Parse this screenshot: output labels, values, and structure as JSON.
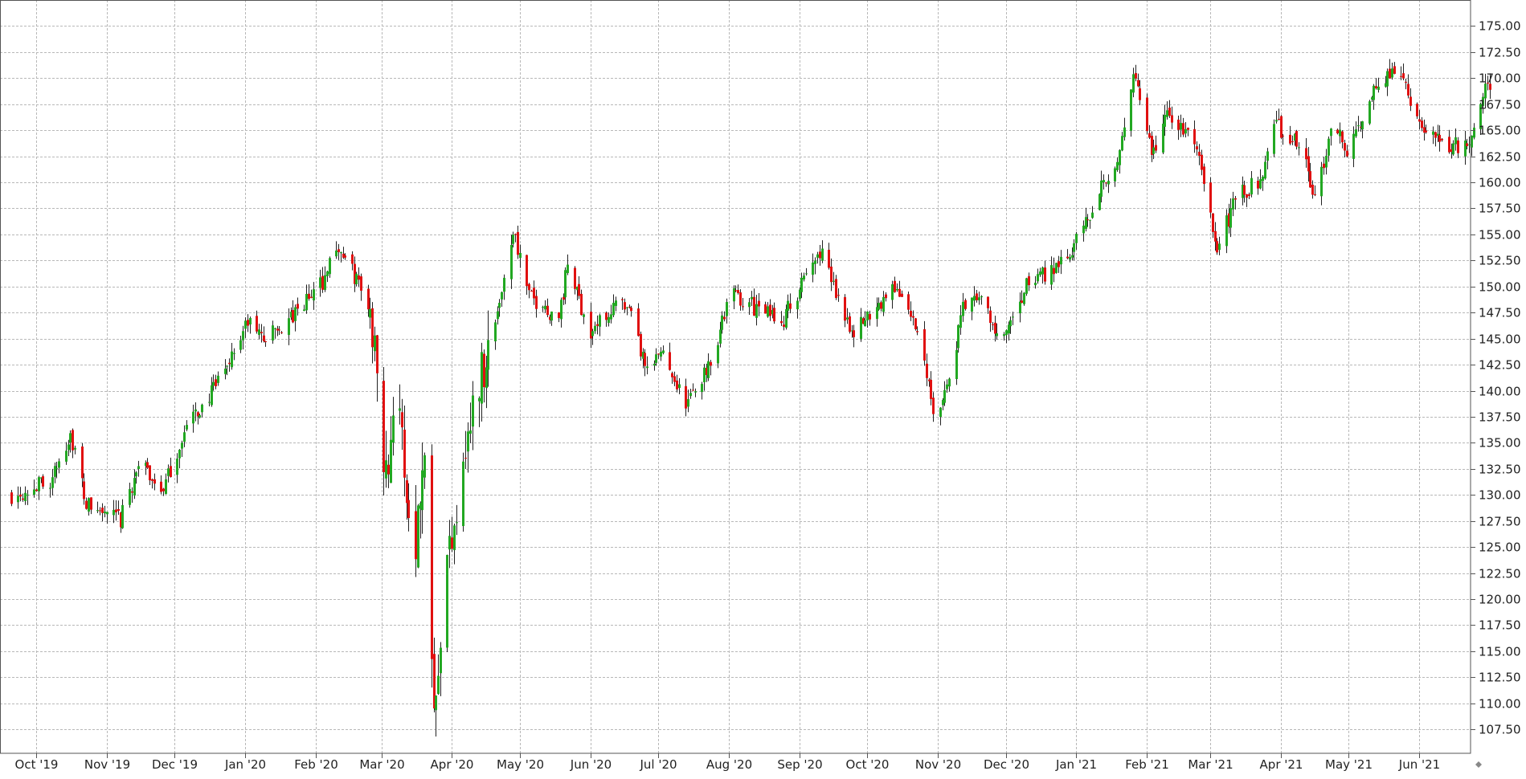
{
  "chart_data": {
    "type": "candlestick",
    "x_tick_labels": [
      "Oct '19",
      "Nov '19",
      "Dec '19",
      "Jan '20",
      "Feb '20",
      "Mar '20",
      "Apr '20",
      "May '20",
      "Jun '20",
      "Jul '20",
      "Aug '20",
      "Sep '20",
      "Oct '20",
      "Nov '20",
      "Dec '20",
      "Jan '21",
      "Feb '21",
      "Mar '21",
      "Apr '21",
      "May '21",
      "Jun '21"
    ],
    "y_tick_labels": [
      "175.00",
      "172.50",
      "170.00",
      "167.50",
      "165.00",
      "162.50",
      "160.00",
      "157.50",
      "155.00",
      "152.50",
      "150.00",
      "147.50",
      "145.00",
      "142.50",
      "140.00",
      "137.50",
      "135.00",
      "132.50",
      "130.00",
      "127.50",
      "125.00",
      "122.50",
      "120.00",
      "117.50",
      "115.00",
      "112.50",
      "110.00",
      "107.50"
    ],
    "ylim": [
      105.2,
      177.5
    ],
    "y_axis_position": "right",
    "grid": true,
    "colors": {
      "up": "#22a822",
      "down": "#e01010",
      "wick": "#222222",
      "grid": "#b8b8b8",
      "axis": "#555555"
    },
    "anchors": [
      {
        "date": "2019-09-20",
        "price": 130.0
      },
      {
        "date": "2019-10-08",
        "price": 131.5
      },
      {
        "date": "2019-10-16",
        "price": 136.0
      },
      {
        "date": "2019-10-23",
        "price": 129.0
      },
      {
        "date": "2019-11-07",
        "price": 127.5
      },
      {
        "date": "2019-11-15",
        "price": 133.0
      },
      {
        "date": "2019-11-26",
        "price": 130.5
      },
      {
        "date": "2019-12-06",
        "price": 136.5
      },
      {
        "date": "2019-12-18",
        "price": 140.0
      },
      {
        "date": "2020-01-02",
        "price": 146.5
      },
      {
        "date": "2020-01-10",
        "price": 145.0
      },
      {
        "date": "2020-01-22",
        "price": 147.0
      },
      {
        "date": "2020-02-04",
        "price": 150.5
      },
      {
        "date": "2020-02-10",
        "price": 154.0
      },
      {
        "date": "2020-02-22",
        "price": 149.5
      },
      {
        "date": "2020-02-28",
        "price": 144.0
      },
      {
        "date": "2020-03-03",
        "price": 131.5
      },
      {
        "date": "2020-03-07",
        "price": 141.0
      },
      {
        "date": "2020-03-15",
        "price": 124.0
      },
      {
        "date": "2020-03-20",
        "price": 134.0
      },
      {
        "date": "2020-03-24",
        "price": 111.0
      },
      {
        "date": "2020-03-31",
        "price": 125.0
      },
      {
        "date": "2020-04-06",
        "price": 134.0
      },
      {
        "date": "2020-04-14",
        "price": 142.0
      },
      {
        "date": "2020-04-20",
        "price": 146.5
      },
      {
        "date": "2020-04-28",
        "price": 155.5
      },
      {
        "date": "2020-05-05",
        "price": 149.0
      },
      {
        "date": "2020-05-18",
        "price": 147.0
      },
      {
        "date": "2020-05-22",
        "price": 152.0
      },
      {
        "date": "2020-06-01",
        "price": 145.5
      },
      {
        "date": "2020-06-12",
        "price": 148.5
      },
      {
        "date": "2020-06-19",
        "price": 147.0
      },
      {
        "date": "2020-06-26",
        "price": 141.5
      },
      {
        "date": "2020-07-03",
        "price": 144.0
      },
      {
        "date": "2020-07-13",
        "price": 138.5
      },
      {
        "date": "2020-07-24",
        "price": 143.0
      },
      {
        "date": "2020-08-02",
        "price": 149.5
      },
      {
        "date": "2020-08-16",
        "price": 147.5
      },
      {
        "date": "2020-08-25",
        "price": 147.0
      },
      {
        "date": "2020-09-03",
        "price": 150.5
      },
      {
        "date": "2020-09-10",
        "price": 153.5
      },
      {
        "date": "2020-09-18",
        "price": 149.0
      },
      {
        "date": "2020-09-25",
        "price": 145.5
      },
      {
        "date": "2020-10-04",
        "price": 148.0
      },
      {
        "date": "2020-10-14",
        "price": 150.0
      },
      {
        "date": "2020-10-24",
        "price": 145.0
      },
      {
        "date": "2020-10-31",
        "price": 137.5
      },
      {
        "date": "2020-11-06",
        "price": 141.0
      },
      {
        "date": "2020-11-12",
        "price": 148.0
      },
      {
        "date": "2020-11-20",
        "price": 149.0
      },
      {
        "date": "2020-11-27",
        "price": 145.0
      },
      {
        "date": "2020-12-03",
        "price": 146.0
      },
      {
        "date": "2020-12-11",
        "price": 150.5
      },
      {
        "date": "2020-12-20",
        "price": 151.5
      },
      {
        "date": "2021-01-02",
        "price": 154.5
      },
      {
        "date": "2021-01-11",
        "price": 159.5
      },
      {
        "date": "2021-01-20",
        "price": 162.5
      },
      {
        "date": "2021-01-26",
        "price": 170.5
      },
      {
        "date": "2021-02-03",
        "price": 162.5
      },
      {
        "date": "2021-02-10",
        "price": 166.5
      },
      {
        "date": "2021-02-22",
        "price": 164.0
      },
      {
        "date": "2021-03-04",
        "price": 153.5
      },
      {
        "date": "2021-03-12",
        "price": 158.5
      },
      {
        "date": "2021-03-22",
        "price": 160.0
      },
      {
        "date": "2021-03-30",
        "price": 165.5
      },
      {
        "date": "2021-04-11",
        "price": 163.0
      },
      {
        "date": "2021-04-16",
        "price": 158.0
      },
      {
        "date": "2021-04-24",
        "price": 166.5
      },
      {
        "date": "2021-05-01",
        "price": 162.5
      },
      {
        "date": "2021-05-08",
        "price": 167.0
      },
      {
        "date": "2021-05-15",
        "price": 170.0
      },
      {
        "date": "2021-05-25",
        "price": 170.5
      },
      {
        "date": "2021-06-01",
        "price": 165.0
      },
      {
        "date": "2021-06-15",
        "price": 163.5
      },
      {
        "date": "2021-06-22",
        "price": 163.5
      },
      {
        "date": "2021-06-29",
        "price": 169.0
      },
      {
        "date": "2021-07-02",
        "price": 169.5
      }
    ]
  }
}
